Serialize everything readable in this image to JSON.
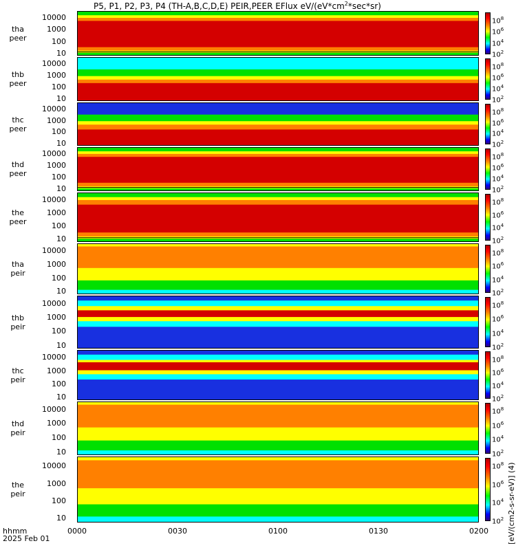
{
  "title": "P5, P1, P2, P3, P4 (TH-A,B,C,D,E) PEIR,PEER EFlux eV/(eV*cm",
  "title_sup": "2",
  "title_tail": "*sec*sr)",
  "colorbar_label": "[eV/(cm2-s-sr-eV)] (4)",
  "colorbar_ticks": [
    "10",
    "10",
    "10",
    "10",
    "10"
  ],
  "colorbar_exps": [
    "8",
    "6",
    "4",
    "2",
    ""
  ],
  "x_axis": {
    "label_line1": "hhmm",
    "label_line2": "2025 Feb 01",
    "ticks": [
      "0000",
      "0030",
      "0100",
      "0130",
      "0200"
    ]
  },
  "y_ticks": [
    "10000",
    "1000",
    "100",
    "10"
  ],
  "colors": {
    "red": "#d40000",
    "orange": "#ff8000",
    "yellow": "#ffff00",
    "green": "#00e000",
    "cyan": "#00ffff",
    "blue": "#0000ff"
  },
  "chart_data": [
    {
      "type": "heatmap",
      "probe": "tha",
      "product": "peer",
      "line1": "tha",
      "line2": "peer",
      "ylim": [
        5,
        30000
      ],
      "xlim": [
        "0000",
        "0200"
      ],
      "yscale": "log",
      "palette": "red-core",
      "core_lo": 30,
      "core_hi": 5000,
      "has_line": true
    },
    {
      "type": "heatmap",
      "probe": "thb",
      "product": "peer",
      "line1": "thb",
      "line2": "peer",
      "ylim": [
        5,
        30000
      ],
      "xlim": [
        "0000",
        "0200"
      ],
      "yscale": "log",
      "palette": "red-low",
      "core_lo": 5,
      "core_hi": 200,
      "has_line": false
    },
    {
      "type": "heatmap",
      "probe": "thc",
      "product": "peer",
      "line1": "thc",
      "line2": "peer",
      "ylim": [
        5,
        30000
      ],
      "xlim": [
        "0000",
        "0200"
      ],
      "yscale": "log",
      "palette": "red-low-noisy",
      "core_lo": 5,
      "core_hi": 150,
      "has_line": false
    },
    {
      "type": "heatmap",
      "probe": "thd",
      "product": "peer",
      "line1": "thd",
      "line2": "peer",
      "ylim": [
        5,
        30000
      ],
      "xlim": [
        "0000",
        "0200"
      ],
      "yscale": "log",
      "palette": "red-core",
      "core_lo": 30,
      "core_hi": 5000,
      "has_line": true
    },
    {
      "type": "heatmap",
      "probe": "the",
      "product": "peer",
      "line1": "the",
      "line2": "peer",
      "ylim": [
        5,
        30000
      ],
      "xlim": [
        "0000",
        "0200"
      ],
      "yscale": "log",
      "palette": "red-core",
      "core_lo": 30,
      "core_hi": 4000,
      "has_line": true
    },
    {
      "type": "heatmap",
      "probe": "tha",
      "product": "peir",
      "line1": "tha",
      "line2": "peir",
      "ylim": [
        5,
        30000
      ],
      "xlim": [
        "0000",
        "0200"
      ],
      "yscale": "log",
      "palette": "orange",
      "core_lo": 500,
      "core_hi": 20000,
      "has_line": false
    },
    {
      "type": "heatmap",
      "probe": "thb",
      "product": "peir",
      "line1": "thb",
      "line2": "peir",
      "ylim": [
        5,
        30000
      ],
      "xlim": [
        "0000",
        "0200"
      ],
      "yscale": "log",
      "palette": "band",
      "core_lo": 1000,
      "core_hi": 3000,
      "has_line": false
    },
    {
      "type": "heatmap",
      "probe": "thc",
      "product": "peir",
      "line1": "thc",
      "line2": "peir",
      "ylim": [
        5,
        30000
      ],
      "xlim": [
        "0000",
        "0200"
      ],
      "yscale": "log",
      "palette": "band-dip",
      "core_lo": 1000,
      "core_hi": 4000,
      "has_line": false
    },
    {
      "type": "heatmap",
      "probe": "thd",
      "product": "peir",
      "line1": "thd",
      "line2": "peir",
      "ylim": [
        5,
        30000
      ],
      "xlim": [
        "0000",
        "0200"
      ],
      "yscale": "log",
      "palette": "orange",
      "core_lo": 500,
      "core_hi": 20000,
      "has_line": false
    },
    {
      "type": "heatmap",
      "probe": "the",
      "product": "peir",
      "line1": "the",
      "line2": "peir",
      "ylim": [
        5,
        30000
      ],
      "xlim": [
        "0000",
        "0200"
      ],
      "yscale": "log",
      "palette": "orange",
      "core_lo": 500,
      "core_hi": 20000,
      "has_line": false
    }
  ]
}
